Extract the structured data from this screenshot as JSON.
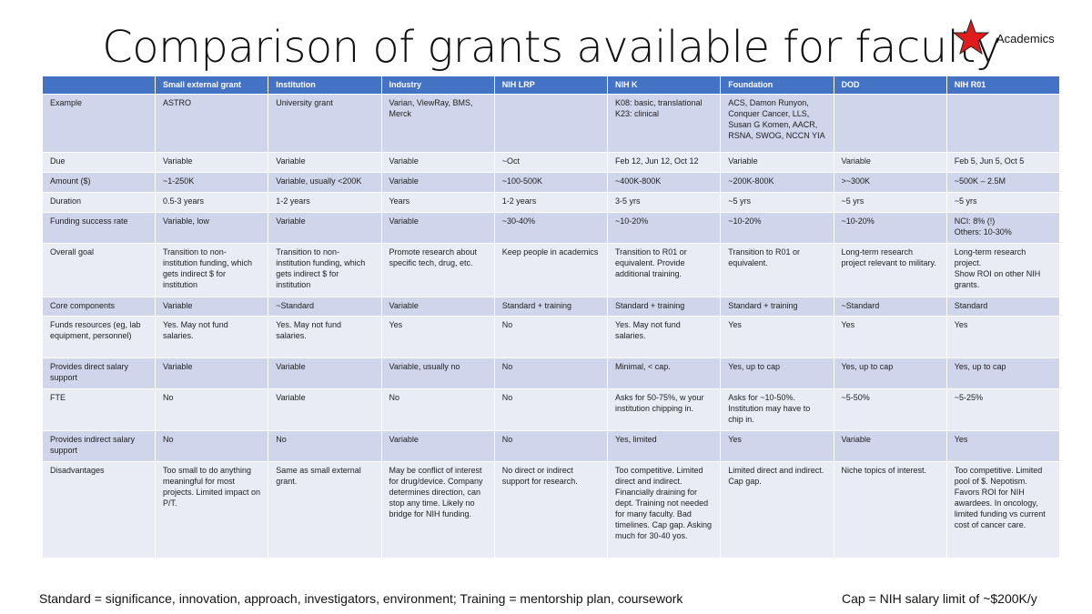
{
  "header": {
    "title": "Comparison of grants available for faculty",
    "badge": "Academics"
  },
  "table": {
    "columns": [
      "Small external grant",
      "Institution",
      "Industry",
      "NIH LRP",
      "NIH K",
      "Foundation",
      "DOD",
      "NIH R01"
    ],
    "rows": [
      {
        "label": "Example",
        "cells": [
          "ASTRO",
          "University grant",
          "Varian, ViewRay, BMS, Merck",
          null,
          "K08: basic, translational\nK23: clinical",
          "ACS, Damon Runyon, Conquer Cancer, LLS, Susan G Komen, AACR, RSNA, SWOG, NCCN YIA",
          null,
          null
        ]
      },
      {
        "label": "Due",
        "cells": [
          "Variable",
          "Variable",
          "Variable",
          "~Oct",
          "Feb 12, Jun 12, Oct 12",
          "Variable",
          "Variable",
          "Feb 5, Jun 5, Oct 5"
        ]
      },
      {
        "label": "Amount ($)",
        "cells": [
          "~1-250K",
          "Variable, usually <200K",
          "Variable",
          "~100-500K",
          "~400K-800K",
          "~200K-800K",
          ">~300K",
          "~500K – 2.5M"
        ]
      },
      {
        "label": "Duration",
        "cells": [
          "0.5-3 years",
          "1-2 years",
          "Years",
          "1-2 years",
          "3-5 yrs",
          "~5 yrs",
          "~5 yrs",
          "~5 yrs"
        ]
      },
      {
        "label": "Funding success rate",
        "cells": [
          "Variable, low",
          "Variable",
          "Variable",
          "~30-40%",
          "~10-20%",
          "~10-20%",
          "~10-20%",
          "NCI: 8% (!)\nOthers: 10-30%"
        ]
      },
      {
        "label": "Overall goal",
        "cells": [
          "Transition to non-institution funding, which gets indirect $ for institution",
          "Transition to non-institution funding, which gets indirect $ for institution",
          "Promote research about specific tech, drug, etc.",
          "Keep people in academics",
          "Transition to R01 or equivalent. Provide additional training.",
          "Transition to R01 or equivalent.",
          "Long-term research project relevant to military.",
          "Long-term research project.\nShow ROI on other NIH grants."
        ]
      },
      {
        "label": "Core components",
        "cells": [
          "Variable",
          "~Standard",
          "Variable",
          "Standard + training",
          "Standard + training",
          "Standard + training",
          "~Standard",
          "Standard"
        ]
      },
      {
        "label": "Funds resources (eg, lab equipment, personnel)",
        "cells": [
          "Yes. May not fund salaries.",
          "Yes. May not fund salaries.",
          "Yes",
          "No",
          "Yes. May not fund salaries.",
          "Yes",
          "Yes",
          "Yes"
        ]
      },
      {
        "label": "Provides direct salary support",
        "cells": [
          "Variable",
          "Variable",
          "Variable, usually no",
          "No",
          "Minimal, < cap.",
          "Yes, up to cap",
          "Yes, up to cap",
          "Yes, up to cap"
        ]
      },
      {
        "label": "FTE",
        "cells": [
          "No",
          "Variable",
          "No",
          "No",
          "Asks for 50-75%, w your institution chipping in.",
          "Asks for ~10-50%. Institution may have to chip in.",
          "~5-50%",
          "~5-25%"
        ]
      },
      {
        "label": "Provides indirect salary support",
        "cells": [
          "No",
          "No",
          "Variable",
          "No",
          "Yes, limited",
          "Yes",
          "Variable",
          "Yes"
        ]
      },
      {
        "label": "Disadvantages",
        "cells": [
          "Too small to do anything meaningful for most projects. Limited impact on P/T.",
          "Same as small external grant.",
          "May be conflict of interest for drug/device. Company determines direction, can stop any time. Likely no bridge for NIH funding.",
          "No direct or indirect support for research.",
          "Too competitive. Limited direct and indirect. Financially draining for dept. Training not needed for many faculty. Bad timelines. Cap gap. Asking much for 30-40 yos.",
          "Limited direct and indirect. Cap gap.",
          "Niche topics of interest.",
          "Too competitive. Limited pool of $. Nepotism. Favors ROI for NIH awardees. In oncology, limited funding vs current cost of cancer care."
        ]
      }
    ]
  },
  "footer": {
    "left": "Standard = significance, innovation, approach, investigators, environment; Training = mentorship plan, coursework",
    "right": "Cap = NIH salary limit of ~$200K/y"
  }
}
